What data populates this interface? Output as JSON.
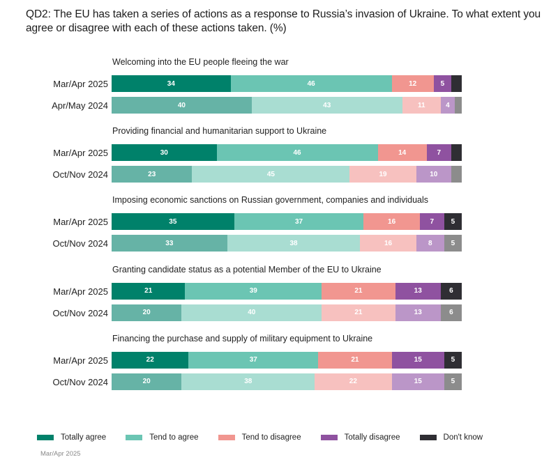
{
  "title": "QD2: The EU has taken a series of actions as a response to Russia’s invasion of Ukraine. To what extent you agree or disagree with each of these actions taken. (%)",
  "footnote": "Mar/Apr 2025",
  "colors": {
    "current": [
      "#00816a",
      "#6bc5b3",
      "#f19690",
      "#8f52a0",
      "#2f2e33"
    ],
    "previous": [
      "#66b3a6",
      "#a9ddd2",
      "#f7c1bf",
      "#bb96c8",
      "#8c8c8c"
    ]
  },
  "chart_data": {
    "type": "bar",
    "orientation": "horizontal-stacked-100",
    "title": "QD2: The EU has taken a series of actions as a response to Russia’s invasion of Ukraine. To what extent you agree or disagree with each of these actions taken. (%)",
    "xlabel": "",
    "ylabel": "",
    "xlim": [
      0,
      100
    ],
    "legend_position": "bottom",
    "legend": [
      "Totally agree",
      "Tend to agree",
      "Tend to disagree",
      "Totally disagree",
      "Don't know"
    ],
    "groups": [
      {
        "label": "Welcoming into the EU people fleeing the war",
        "rows": [
          {
            "period": "Mar/Apr 2025",
            "values": [
              34,
              46,
              12,
              5,
              3
            ],
            "labels": [
              "34",
              "46",
              "12",
              "5",
              ""
            ]
          },
          {
            "period": "Apr/May 2024",
            "values": [
              40,
              43,
              11,
              4,
              2
            ],
            "labels": [
              "40",
              "43",
              "11",
              "4",
              ""
            ]
          }
        ]
      },
      {
        "label": "Providing financial and humanitarian support to Ukraine",
        "rows": [
          {
            "period": "Mar/Apr 2025",
            "values": [
              30,
              46,
              14,
              7,
              3
            ],
            "labels": [
              "30",
              "46",
              "14",
              "7",
              ""
            ]
          },
          {
            "period": "Oct/Nov 2024",
            "values": [
              23,
              45,
              19,
              10,
              3
            ],
            "labels": [
              "23",
              "45",
              "19",
              "10",
              ""
            ]
          }
        ]
      },
      {
        "label": "Imposing economic sanctions on Russian government, companies and individuals",
        "rows": [
          {
            "period": "Mar/Apr 2025",
            "values": [
              35,
              37,
              16,
              7,
              5
            ],
            "labels": [
              "35",
              "37",
              "16",
              "7",
              "5"
            ]
          },
          {
            "period": "Oct/Nov 2024",
            "values": [
              33,
              38,
              16,
              8,
              5
            ],
            "labels": [
              "33",
              "38",
              "16",
              "8",
              "5"
            ]
          }
        ]
      },
      {
        "label": "Granting candidate status as a potential Member of the EU to Ukraine",
        "rows": [
          {
            "period": "Mar/Apr 2025",
            "values": [
              21,
              39,
              21,
              13,
              6
            ],
            "labels": [
              "21",
              "39",
              "21",
              "13",
              "6"
            ]
          },
          {
            "period": "Oct/Nov 2024",
            "values": [
              20,
              40,
              21,
              13,
              6
            ],
            "labels": [
              "20",
              "40",
              "21",
              "13",
              "6"
            ]
          }
        ]
      },
      {
        "label": "Financing the purchase and supply of military equipment to Ukraine",
        "rows": [
          {
            "period": "Mar/Apr 2025",
            "values": [
              22,
              37,
              21,
              15,
              5
            ],
            "labels": [
              "22",
              "37",
              "21",
              "15",
              "5"
            ]
          },
          {
            "period": "Oct/Nov 2024",
            "values": [
              20,
              38,
              22,
              15,
              5
            ],
            "labels": [
              "20",
              "38",
              "22",
              "15",
              "5"
            ]
          }
        ]
      }
    ]
  }
}
